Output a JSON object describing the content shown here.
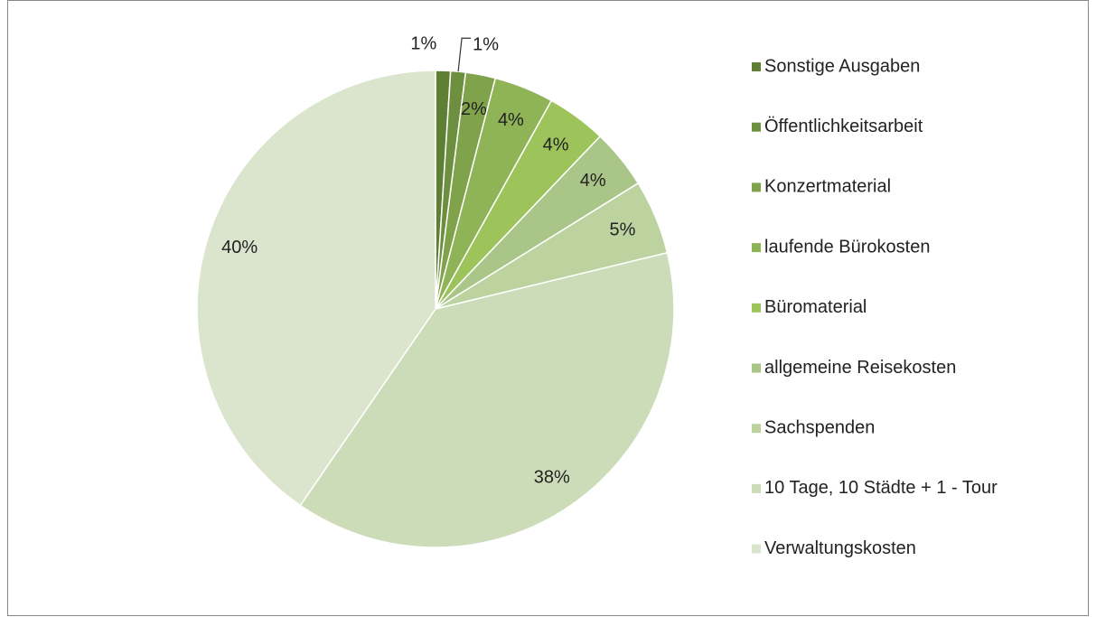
{
  "chart_data": {
    "type": "pie",
    "categories": [
      "Sonstige Ausgaben",
      "Öffentlichkeitsarbeit",
      "Konzertmaterial",
      "laufende Bürokosten",
      "Büromaterial",
      "allgemeine Reisekosten",
      "Sachspenden",
      "10 Tage, 10 Städte + 1 - Tour",
      "Verwaltungskosten"
    ],
    "values": [
      1,
      1,
      2,
      4,
      4,
      4,
      5,
      38,
      40
    ],
    "value_labels": [
      "1%",
      "1%",
      "2%",
      "4%",
      "4%",
      "4%",
      "5%",
      "38%",
      "40%"
    ],
    "colors": [
      "#5e7f34",
      "#6e8f3f",
      "#7fa24b",
      "#8fb357",
      "#9cc45b",
      "#a9c588",
      "#bcd3a0",
      "#cddcb8",
      "#dbe5cd"
    ],
    "legend": "right"
  }
}
